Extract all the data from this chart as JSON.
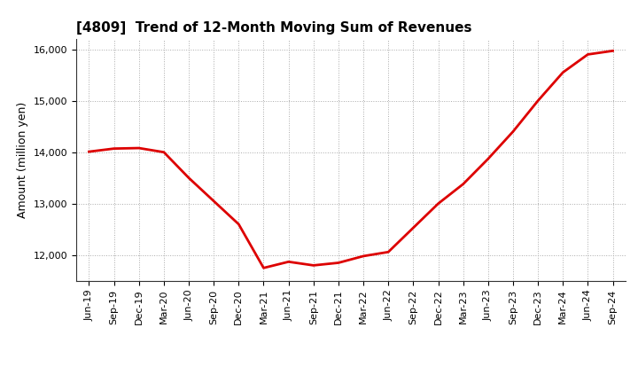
{
  "title": "[4809]  Trend of 12-Month Moving Sum of Revenues",
  "ylabel": "Amount (million yen)",
  "line_color": "#dd0000",
  "background_color": "#ffffff",
  "grid_color": "#aaaaaa",
  "ylim": [
    11500,
    16200
  ],
  "yticks": [
    12000,
    13000,
    14000,
    15000,
    16000
  ],
  "x_labels": [
    "Jun-19",
    "Sep-19",
    "Dec-19",
    "Mar-20",
    "Jun-20",
    "Sep-20",
    "Dec-20",
    "Mar-21",
    "Jun-21",
    "Sep-21",
    "Dec-21",
    "Mar-22",
    "Jun-22",
    "Sep-22",
    "Dec-22",
    "Mar-23",
    "Jun-23",
    "Sep-23",
    "Dec-23",
    "Mar-24",
    "Jun-24",
    "Sep-24"
  ],
  "values": [
    14010,
    14070,
    14080,
    14000,
    13500,
    13050,
    12600,
    11750,
    11870,
    11800,
    11850,
    11980,
    12060,
    12530,
    13000,
    13380,
    13870,
    14400,
    15000,
    15550,
    15900,
    15970
  ],
  "title_fontsize": 11,
  "ylabel_fontsize": 9,
  "tick_fontsize": 8,
  "line_width": 2.0
}
